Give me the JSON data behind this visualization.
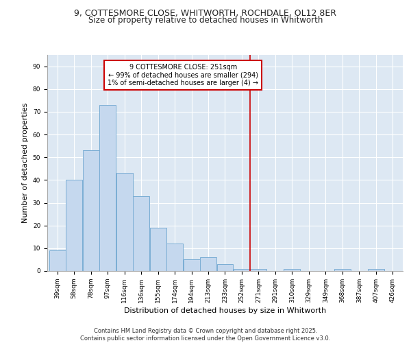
{
  "title_line1": "9, COTTESMORE CLOSE, WHITWORTH, ROCHDALE, OL12 8ER",
  "title_line2": "Size of property relative to detached houses in Whitworth",
  "xlabel": "Distribution of detached houses by size in Whitworth",
  "ylabel": "Number of detached properties",
  "categories": [
    "39sqm",
    "58sqm",
    "78sqm",
    "97sqm",
    "116sqm",
    "136sqm",
    "155sqm",
    "174sqm",
    "194sqm",
    "213sqm",
    "233sqm",
    "252sqm",
    "271sqm",
    "291sqm",
    "310sqm",
    "329sqm",
    "349sqm",
    "368sqm",
    "387sqm",
    "407sqm",
    "426sqm"
  ],
  "values": [
    9,
    40,
    53,
    73,
    43,
    33,
    19,
    12,
    5,
    6,
    3,
    1,
    1,
    0,
    1,
    0,
    0,
    1,
    0,
    1,
    0
  ],
  "bar_color": "#c5d8ee",
  "bar_edge_color": "#7aadd4",
  "property_line_index": 11.5,
  "annotation_text": "9 COTTESMORE CLOSE: 251sqm\n← 99% of detached houses are smaller (294)\n1% of semi-detached houses are larger (4) →",
  "annotation_box_color": "#ffffff",
  "annotation_box_edge_color": "#cc0000",
  "ylim": [
    0,
    95
  ],
  "yticks": [
    0,
    10,
    20,
    30,
    40,
    50,
    60,
    70,
    80,
    90
  ],
  "background_color": "#dde8f3",
  "grid_color": "#ffffff",
  "footer_text": "Contains HM Land Registry data © Crown copyright and database right 2025.\nContains public sector information licensed under the Open Government Licence v3.0.",
  "title_fontsize": 9,
  "subtitle_fontsize": 8.5,
  "axis_label_fontsize": 8,
  "tick_fontsize": 6.5,
  "annotation_fontsize": 7,
  "footer_fontsize": 6
}
